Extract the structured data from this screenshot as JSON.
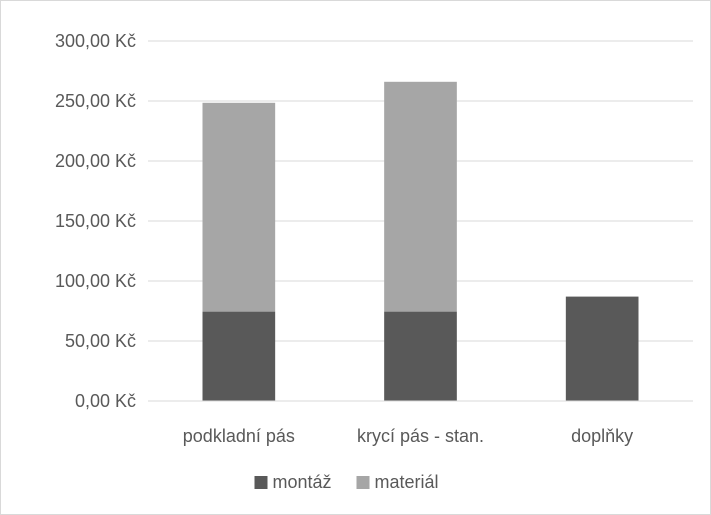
{
  "chart_data": {
    "type": "bar",
    "stacked": true,
    "categories": [
      "podkladní pás",
      "krycí pás - stan.",
      "doplňky"
    ],
    "series": [
      {
        "name": "montáž",
        "values": [
          74.5,
          74.5,
          87
        ],
        "color": "#595959"
      },
      {
        "name": "materiál",
        "values": [
          174,
          191.5,
          0
        ],
        "color": "#a6a6a6"
      }
    ],
    "ylim": [
      0,
      300
    ],
    "yticks": [
      0,
      50,
      100,
      150,
      200,
      250,
      300
    ],
    "ytick_labels": [
      "0,00 Kč",
      "50,00 Kč",
      "100,00 Kč",
      "150,00 Kč",
      "200,00 Kč",
      "250,00 Kč",
      "300,00 Kč"
    ],
    "grid": true,
    "legend_position": "bottom",
    "title": "",
    "xlabel": "",
    "ylabel": ""
  }
}
